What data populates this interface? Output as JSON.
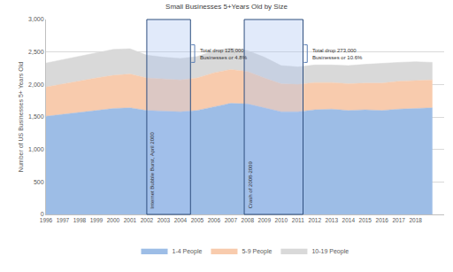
{
  "chart_data": {
    "type": "area",
    "stacked": true,
    "title": "Small Businesses 5+Years Old by Size",
    "y_label": "Number of US Businesses 5+ Years Old",
    "x": [
      1996,
      1997,
      1998,
      1999,
      2000,
      2001,
      2002,
      2003,
      2004,
      2005,
      2006,
      2007,
      2008,
      2009,
      2010,
      2011,
      2012,
      2013,
      2014,
      2015,
      2016,
      2017,
      2018,
      2019
    ],
    "series": [
      {
        "name": "1-4 People",
        "color": "#9dbde6",
        "values": [
          1510,
          1540,
          1570,
          1600,
          1630,
          1640,
          1600,
          1590,
          1580,
          1600,
          1660,
          1710,
          1700,
          1640,
          1580,
          1580,
          1610,
          1620,
          1600,
          1610,
          1600,
          1620,
          1630,
          1640
        ]
      },
      {
        "name": "5-9 People",
        "color": "#f8cbad",
        "values": [
          450,
          470,
          480,
          500,
          510,
          520,
          500,
          490,
          490,
          500,
          520,
          520,
          500,
          460,
          430,
          420,
          420,
          410,
          410,
          410,
          420,
          430,
          430,
          430
        ]
      },
      {
        "name": "10-19 People",
        "color": "#d9d9d9",
        "values": [
          370,
          370,
          380,
          380,
          400,
          390,
          350,
          340,
          330,
          330,
          340,
          330,
          320,
          320,
          280,
          270,
          270,
          270,
          280,
          290,
          310,
          290,
          290,
          270
        ]
      }
    ],
    "xlim": [
      1996,
      2019.7
    ],
    "xticks": [
      1996,
      1997,
      1998,
      1999,
      2000,
      2001,
      2002,
      2003,
      2004,
      2005,
      2006,
      2007,
      2008,
      2009,
      2010,
      2011,
      2012,
      2013,
      2014,
      2015,
      2016,
      2017,
      2018
    ],
    "ylim": [
      0,
      3000
    ],
    "yticks": [
      0,
      500,
      {
        "value": 1000,
        "label": "1,000"
      },
      {
        "value": 1500,
        "label": "1,500"
      },
      {
        "value": 2000,
        "label": "2,000"
      },
      {
        "value": 2500,
        "label": "2,500"
      },
      {
        "value": 3000,
        "label": "3,000"
      }
    ],
    "grid": true,
    "legend": "bottom",
    "shaded_periods": [
      {
        "x0": 2002.0,
        "x1": 2004.6,
        "label": "Internet Bubble Burst, April 2000",
        "annotation": "Total drop 125,000\nBusinesses or 4.8%"
      },
      {
        "x0": 2007.8,
        "x1": 2011.3,
        "label": "Crash of 2008-2009",
        "annotation": "Total drop 273,000\nBusinesses or 10.6%"
      }
    ]
  }
}
